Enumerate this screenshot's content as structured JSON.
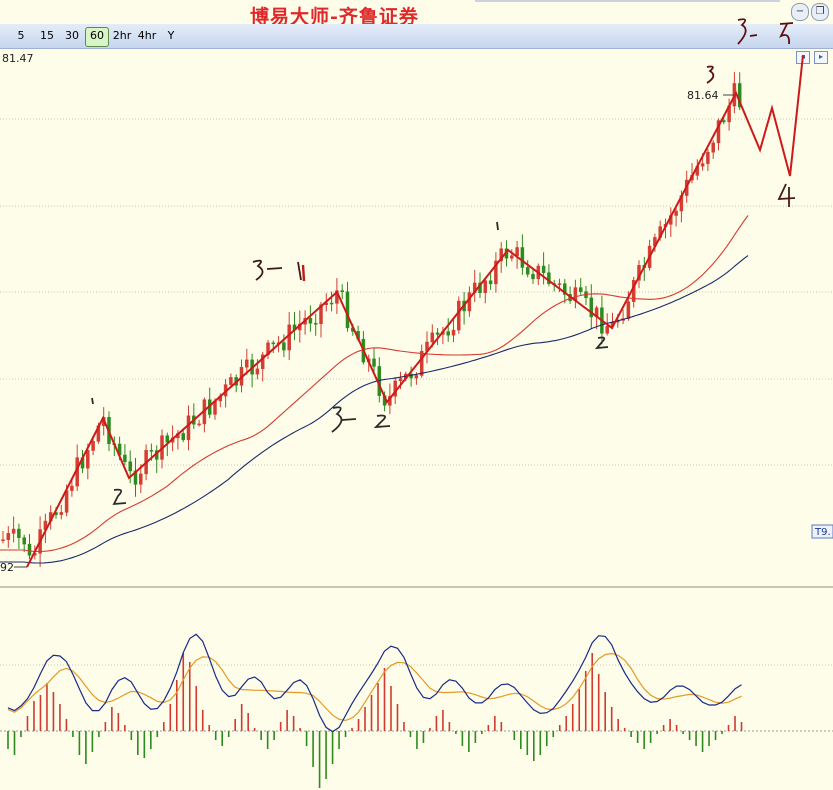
{
  "title": "博易大师-齐鲁证券",
  "toolbar": {
    "timeframes": [
      "5",
      "15",
      "30",
      "60",
      "2hr",
      "4hr",
      "Y"
    ],
    "active": "60"
  },
  "window_controls": {
    "minimize": "−",
    "restore": "❐"
  },
  "price_readout": "81.47",
  "high_label": "81.64",
  "low_label": "92",
  "right_tag": "T9.",
  "chart_data": [
    {
      "type": "candlestick",
      "title": "",
      "subtitle": "",
      "timeframe": "60",
      "y_readout": 81.47,
      "marked_high": 81.64,
      "marked_low_label": "92",
      "moving_averages": [
        {
          "color": "#d83a30"
        },
        {
          "color": "#1a2a6a"
        }
      ],
      "bar_colors": {
        "up": "#d43d33",
        "down": "#2c8a1e"
      },
      "wave_path_color": "#cc1a1a",
      "wave_vertices_index": [
        2,
        13,
        16,
        44,
        52,
        73,
        83,
        98,
        120,
        131,
        135,
        137,
        140
      ],
      "annotations": [
        "1",
        "2",
        "3-1",
        "3-2",
        "1",
        "2",
        "3",
        "4",
        "3-5"
      ]
    },
    {
      "type": "bar",
      "indicator_panel": true,
      "title": "",
      "line_colors": {
        "fast": "#1a2a88",
        "slow": "#e49a2a"
      },
      "bar_colors": {
        "positive": "#d03a30",
        "negative": "#2c8a1e"
      },
      "values": [
        -0.6,
        -0.8,
        -0.2,
        0.5,
        1.0,
        1.2,
        1.6,
        1.3,
        0.9,
        0.4,
        -0.2,
        -0.8,
        -1.1,
        -0.7,
        -0.2,
        0.3,
        0.8,
        0.6,
        0.2,
        -0.3,
        -0.8,
        -0.9,
        -0.6,
        -0.2,
        0.3,
        0.9,
        1.7,
        2.6,
        2.3,
        1.5,
        0.7,
        0.2,
        -0.3,
        -0.5,
        -0.2,
        0.4,
        0.9,
        0.6,
        0.1,
        -0.3,
        -0.6,
        -0.3,
        0.3,
        0.7,
        0.5,
        0.1,
        -0.5,
        -1.2,
        -1.9,
        -1.6,
        -1.1,
        -0.6,
        -0.2,
        0.1,
        0.4,
        0.8,
        1.2,
        1.6,
        2.1,
        1.5,
        0.9,
        0.3,
        -0.2,
        -0.6,
        -0.4,
        0.1,
        0.5,
        0.7,
        0.3,
        -0.1,
        -0.5,
        -0.7,
        -0.4,
        -0.1,
        0.2,
        0.5,
        0.3,
        0.0,
        -0.3,
        -0.6,
        -0.8,
        -1.0,
        -0.8,
        -0.5,
        -0.2,
        0.2,
        0.5,
        0.9,
        1.4,
        2.0,
        2.6,
        1.9,
        1.3,
        0.8,
        0.4,
        0.1,
        -0.2,
        -0.4,
        -0.6,
        -0.4,
        -0.1,
        0.2,
        0.4,
        0.2,
        -0.1,
        -0.3,
        -0.5,
        -0.7,
        -0.5,
        -0.3,
        -0.1,
        0.2,
        0.5,
        0.3
      ],
      "ylim": [
        -3,
        3
      ]
    }
  ]
}
